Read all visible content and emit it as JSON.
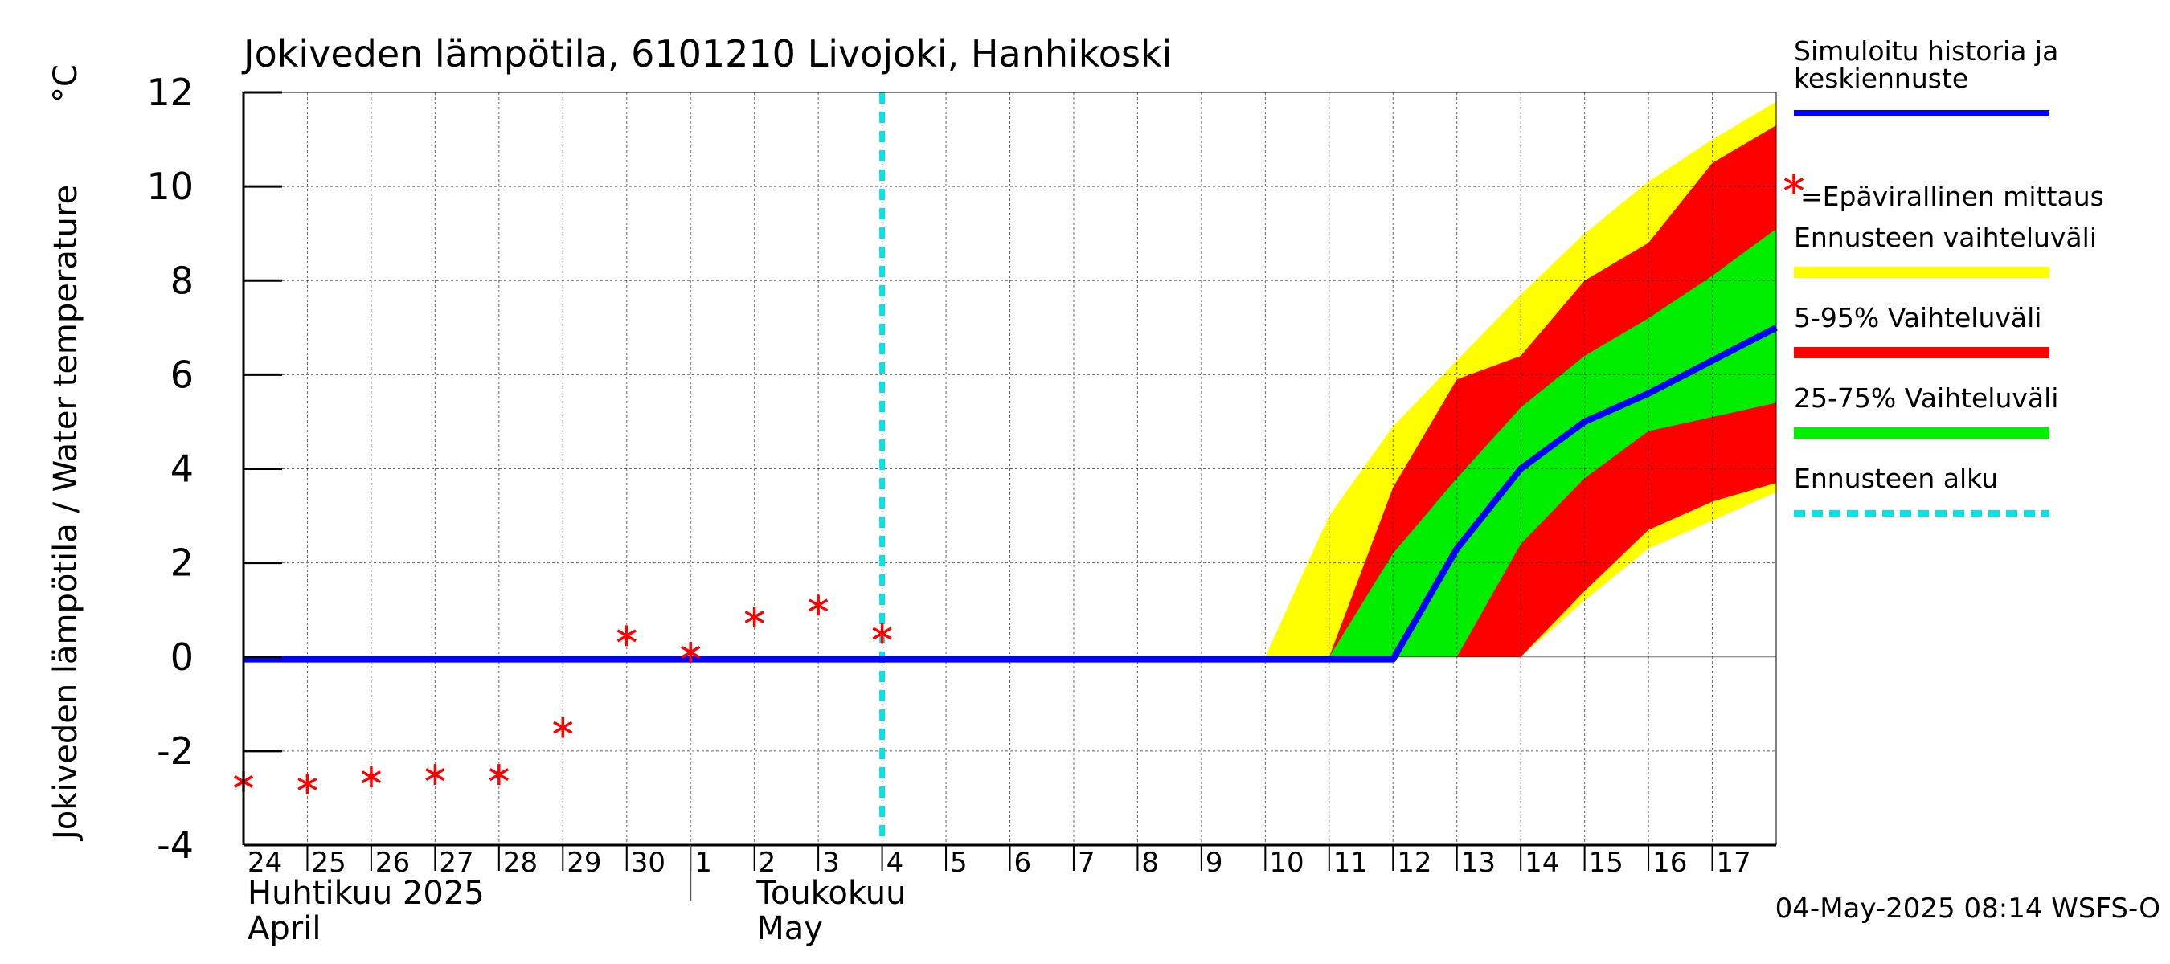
{
  "chart_data": {
    "type": "area",
    "title": "Jokiveden lämpötila, 6101210 Livojoki, Hanhikoski",
    "ylabel": "Jokiveden lämpötila / Water temperature",
    "yunit": "°C",
    "ylim": [
      -4,
      12
    ],
    "yticks": [
      -4,
      -2,
      0,
      2,
      4,
      6,
      8,
      10,
      12
    ],
    "xlim": [
      "2025-04-24",
      "2025-05-18"
    ],
    "grid": true,
    "legend_position": "right",
    "x_tick_labels": [
      {
        "date": "2025-04-24",
        "label": "24"
      },
      {
        "date": "2025-04-25",
        "label": "25"
      },
      {
        "date": "2025-04-26",
        "label": "26"
      },
      {
        "date": "2025-04-27",
        "label": "27"
      },
      {
        "date": "2025-04-28",
        "label": "28"
      },
      {
        "date": "2025-04-29",
        "label": "29"
      },
      {
        "date": "2025-04-30",
        "label": "30"
      },
      {
        "date": "2025-05-01",
        "label": "1"
      },
      {
        "date": "2025-05-02",
        "label": "2"
      },
      {
        "date": "2025-05-03",
        "label": "3"
      },
      {
        "date": "2025-05-04",
        "label": "4"
      },
      {
        "date": "2025-05-05",
        "label": "5"
      },
      {
        "date": "2025-05-06",
        "label": "6"
      },
      {
        "date": "2025-05-07",
        "label": "7"
      },
      {
        "date": "2025-05-08",
        "label": "8"
      },
      {
        "date": "2025-05-09",
        "label": "9"
      },
      {
        "date": "2025-05-10",
        "label": "10"
      },
      {
        "date": "2025-05-11",
        "label": "11"
      },
      {
        "date": "2025-05-12",
        "label": "12"
      },
      {
        "date": "2025-05-13",
        "label": "13"
      },
      {
        "date": "2025-05-14",
        "label": "14"
      },
      {
        "date": "2025-05-15",
        "label": "15"
      },
      {
        "date": "2025-05-16",
        "label": "16"
      },
      {
        "date": "2025-05-17",
        "label": "17"
      }
    ],
    "month_labels": [
      {
        "date": "2025-04-24",
        "fi": "Huhtikuu  2025",
        "en": "April"
      },
      {
        "date": "2025-05-01",
        "fi": "Toukokuu",
        "en": "May"
      }
    ],
    "forecast_start": "2025-05-04",
    "series": [
      {
        "name": "Simuloitu historia ja keskiennuste",
        "kind": "line",
        "color": "#0000ff",
        "points": [
          [
            "2025-04-24",
            -0.05
          ],
          [
            "2025-05-01",
            -0.05
          ],
          [
            "2025-05-04",
            -0.05
          ],
          [
            "2025-05-10",
            -0.05
          ],
          [
            "2025-05-12",
            -0.05
          ],
          [
            "2025-05-13",
            2.3
          ],
          [
            "2025-05-14",
            4.0
          ],
          [
            "2025-05-15",
            5.0
          ],
          [
            "2025-05-16",
            5.6
          ],
          [
            "2025-05-17",
            6.3
          ],
          [
            "2025-05-18",
            7.0
          ]
        ]
      },
      {
        "name": "=Epävirallinen mittaus",
        "kind": "markers",
        "color": "#ff0000",
        "points": [
          [
            "2025-04-24",
            -2.65
          ],
          [
            "2025-04-25",
            -2.7
          ],
          [
            "2025-04-26",
            -2.55
          ],
          [
            "2025-04-27",
            -2.5
          ],
          [
            "2025-04-28",
            -2.5
          ],
          [
            "2025-04-29",
            -1.5
          ],
          [
            "2025-04-30",
            0.45
          ],
          [
            "2025-05-01",
            0.1
          ],
          [
            "2025-05-02",
            0.85
          ],
          [
            "2025-05-03",
            1.1
          ],
          [
            "2025-05-04",
            0.5
          ]
        ]
      },
      {
        "name": "Ennusteen vaihteluväli",
        "kind": "band",
        "color": "#ffff00",
        "upper": [
          [
            "2025-05-10",
            0
          ],
          [
            "2025-05-11",
            3.0
          ],
          [
            "2025-05-12",
            4.9
          ],
          [
            "2025-05-13",
            6.3
          ],
          [
            "2025-05-14",
            7.7
          ],
          [
            "2025-05-15",
            9.0
          ],
          [
            "2025-05-16",
            10.1
          ],
          [
            "2025-05-17",
            11.0
          ],
          [
            "2025-05-18",
            11.8
          ]
        ],
        "lower": [
          [
            "2025-05-10",
            0
          ],
          [
            "2025-05-14",
            0
          ],
          [
            "2025-05-15",
            1.2
          ],
          [
            "2025-05-16",
            2.3
          ],
          [
            "2025-05-17",
            2.9
          ],
          [
            "2025-05-18",
            3.5
          ]
        ]
      },
      {
        "name": "5-95% Vaihteluväli",
        "kind": "band",
        "color": "#ff0000",
        "upper": [
          [
            "2025-05-11",
            0
          ],
          [
            "2025-05-12",
            3.6
          ],
          [
            "2025-05-13",
            5.9
          ],
          [
            "2025-05-14",
            6.4
          ],
          [
            "2025-05-15",
            8.0
          ],
          [
            "2025-05-16",
            8.8
          ],
          [
            "2025-05-17",
            10.5
          ],
          [
            "2025-05-18",
            11.3
          ]
        ],
        "lower": [
          [
            "2025-05-11",
            0
          ],
          [
            "2025-05-14",
            0
          ],
          [
            "2025-05-15",
            1.4
          ],
          [
            "2025-05-16",
            2.7
          ],
          [
            "2025-05-17",
            3.3
          ],
          [
            "2025-05-18",
            3.7
          ]
        ]
      },
      {
        "name": "25-75% Vaihteluväli",
        "kind": "band",
        "color": "#00ee00",
        "upper": [
          [
            "2025-05-11",
            0
          ],
          [
            "2025-05-12",
            2.2
          ],
          [
            "2025-05-13",
            3.8
          ],
          [
            "2025-05-14",
            5.3
          ],
          [
            "2025-05-15",
            6.4
          ],
          [
            "2025-05-16",
            7.2
          ],
          [
            "2025-05-17",
            8.1
          ],
          [
            "2025-05-18",
            9.1
          ]
        ],
        "lower": [
          [
            "2025-05-11",
            0
          ],
          [
            "2025-05-13",
            0
          ],
          [
            "2025-05-14",
            2.4
          ],
          [
            "2025-05-15",
            3.8
          ],
          [
            "2025-05-16",
            4.8
          ],
          [
            "2025-05-17",
            5.1
          ],
          [
            "2025-05-18",
            5.4
          ]
        ]
      },
      {
        "name": "Ennusteen alku",
        "kind": "vline",
        "color": "#00e5e5",
        "date": "2025-05-04"
      }
    ],
    "legend": [
      {
        "label": "Simuloitu historia ja\nkeskiennuste",
        "color": "#0000ff",
        "style": "line"
      },
      {
        "label": "=Epävirallinen mittaus",
        "color": "#ff0000",
        "style": "marker"
      },
      {
        "label": "Ennusteen vaihteluväli",
        "color": "#ffff00",
        "style": "band"
      },
      {
        "label": "5-95% Vaihteluväli",
        "color": "#ff0000",
        "style": "band"
      },
      {
        "label": "25-75% Vaihteluväli",
        "color": "#00ee00",
        "style": "band"
      },
      {
        "label": "Ennusteen alku",
        "color": "#00e5e5",
        "style": "dashed"
      }
    ],
    "footer": "04-May-2025 08:14 WSFS-O"
  }
}
